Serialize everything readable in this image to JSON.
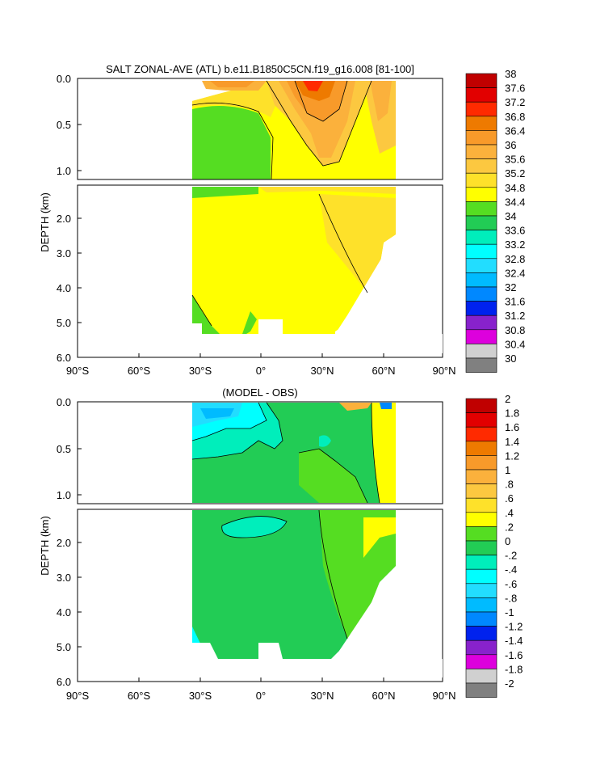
{
  "chart_data": [
    {
      "type": "heatmap",
      "title": "SALT ZONAL-AVE (ATL) b.e11.B1850C5CN.f19_g16.008 [81-100]",
      "ylabel": "DEPTH (km)",
      "xticks": [
        "90°S",
        "60°S",
        "30°S",
        "0°",
        "30°N",
        "60°N",
        "90°N"
      ],
      "yticks_upper": [
        "0.0",
        "0.5",
        "1.0"
      ],
      "yticks_lower": [
        "2.0",
        "3.0",
        "4.0",
        "5.0",
        "6.0"
      ],
      "xlim": [
        -90,
        90
      ],
      "ylim_upper_km": [
        0,
        1.1
      ],
      "ylim_lower_km": [
        1.1,
        6.0
      ],
      "colorbar": {
        "labels": [
          "38",
          "37.6",
          "37.2",
          "36.8",
          "36.4",
          "36",
          "35.6",
          "35.2",
          "34.8",
          "34.4",
          "34",
          "33.6",
          "33.2",
          "32.8",
          "32.4",
          "32",
          "31.6",
          "31.2",
          "30.8",
          "30.4",
          "30"
        ],
        "colors": [
          "#c00000",
          "#e20000",
          "#ff2a00",
          "#ee7a00",
          "#f89a2a",
          "#fbb13c",
          "#fcc840",
          "#fee12a",
          "#ffff00",
          "#55dd22",
          "#22cc55",
          "#00eebb",
          "#00ffff",
          "#22ddff",
          "#00bbff",
          "#0088ff",
          "#0022ee",
          "#8822cc",
          "#dd00dd",
          "#d0d0d0",
          "#808080"
        ]
      }
    },
    {
      "type": "heatmap",
      "title": "(MODEL - OBS)",
      "ylabel": "DEPTH (km)",
      "xticks": [
        "90°S",
        "60°S",
        "30°S",
        "0°",
        "30°N",
        "60°N",
        "90°N"
      ],
      "yticks_upper": [
        "0.0",
        "0.5",
        "1.0"
      ],
      "yticks_lower": [
        "2.0",
        "3.0",
        "4.0",
        "5.0",
        "6.0"
      ],
      "xlim": [
        -90,
        90
      ],
      "ylim_upper_km": [
        0,
        1.1
      ],
      "ylim_lower_km": [
        1.1,
        6.0
      ],
      "colorbar": {
        "labels": [
          "2",
          "1.8",
          "1.6",
          "1.4",
          "1.2",
          "1",
          ".8",
          ".6",
          ".4",
          ".2",
          "0",
          "-.2",
          "-.4",
          "-.6",
          "-.8",
          "-1",
          "-1.2",
          "-1.4",
          "-1.6",
          "-1.8",
          "-2"
        ],
        "colors": [
          "#c00000",
          "#e20000",
          "#ff2a00",
          "#ee7a00",
          "#f89a2a",
          "#fbb13c",
          "#fcc840",
          "#fee12a",
          "#ffff00",
          "#55dd22",
          "#22cc55",
          "#00eebb",
          "#00ffff",
          "#22ddff",
          "#00bbff",
          "#0088ff",
          "#0022ee",
          "#8822cc",
          "#dd00dd",
          "#d0d0d0",
          "#808080"
        ]
      }
    }
  ]
}
